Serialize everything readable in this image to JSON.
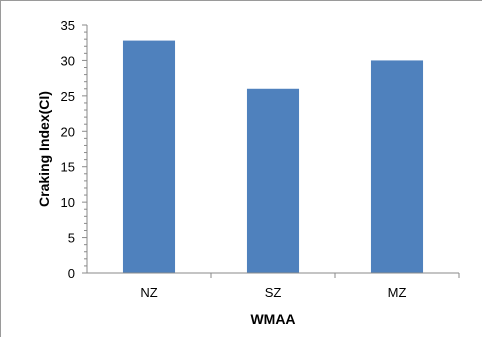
{
  "chart_data": {
    "type": "bar",
    "title": "",
    "xlabel": "WMAA",
    "ylabel": "Craking Index(CI)",
    "categories": [
      "NZ",
      "SZ",
      "MZ"
    ],
    "values": [
      32.8,
      26.0,
      30.0
    ],
    "ylim": [
      0,
      35
    ],
    "yticks": [
      0,
      5,
      10,
      15,
      20,
      25,
      30,
      35
    ],
    "grid": false,
    "legend": "none",
    "bar_color": "#4f81bd"
  }
}
